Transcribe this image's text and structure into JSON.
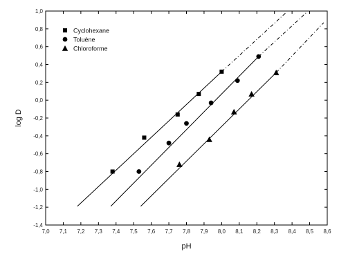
{
  "chart_data": {
    "type": "scatter",
    "xlabel": "pH",
    "ylabel": "log D",
    "xlim": [
      7.0,
      8.6
    ],
    "ylim": [
      -1.4,
      1.0
    ],
    "x_ticks": [
      "7,0",
      "7,1",
      "7,2",
      "7,3",
      "7,4",
      "7,5",
      "7,6",
      "7,7",
      "7,8",
      "7,9",
      "8,0",
      "8,1",
      "8,2",
      "8,3",
      "8,4",
      "8,5",
      "8,6"
    ],
    "y_ticks": [
      "1,0",
      "0,8",
      "0,6",
      "0,4",
      "0,2",
      "0,0",
      "-0,2",
      "-0,4",
      "-0,6",
      "-0,8",
      "-1,0",
      "-1,2",
      "-1,4"
    ],
    "grid": false,
    "legend_position": "top-left",
    "series": [
      {
        "name": "Cyclohexane",
        "marker": "square",
        "color": "#000000",
        "x": [
          7.38,
          7.56,
          7.75,
          7.87,
          8.0
        ],
        "y": [
          -0.8,
          -0.42,
          -0.16,
          0.07,
          0.32
        ],
        "fit_solid": [
          [
            7.18,
            -1.19
          ],
          [
            8.0,
            0.32
          ]
        ],
        "fit_dashed": [
          [
            8.0,
            0.32
          ],
          [
            8.37,
            0.99
          ]
        ]
      },
      {
        "name": "Toluène",
        "marker": "circle",
        "color": "#000000",
        "x": [
          7.53,
          7.7,
          7.8,
          7.94,
          8.09,
          8.21
        ],
        "y": [
          -0.8,
          -0.48,
          -0.26,
          -0.03,
          0.22,
          0.49
        ],
        "fit_solid": [
          [
            7.37,
            -1.19
          ],
          [
            8.21,
            0.49
          ]
        ],
        "fit_dashed": [
          [
            8.21,
            0.49
          ],
          [
            8.48,
            0.98
          ]
        ]
      },
      {
        "name": "Chloroforme",
        "marker": "triangle",
        "color": "#000000",
        "x": [
          7.76,
          7.93,
          8.07,
          8.17,
          8.31
        ],
        "y": [
          -0.72,
          -0.44,
          -0.13,
          0.07,
          0.31
        ],
        "fit_solid": [
          [
            7.54,
            -1.19
          ],
          [
            8.31,
            0.31
          ]
        ],
        "fit_dashed": [
          [
            8.31,
            0.31
          ],
          [
            8.58,
            0.87
          ]
        ]
      }
    ]
  }
}
